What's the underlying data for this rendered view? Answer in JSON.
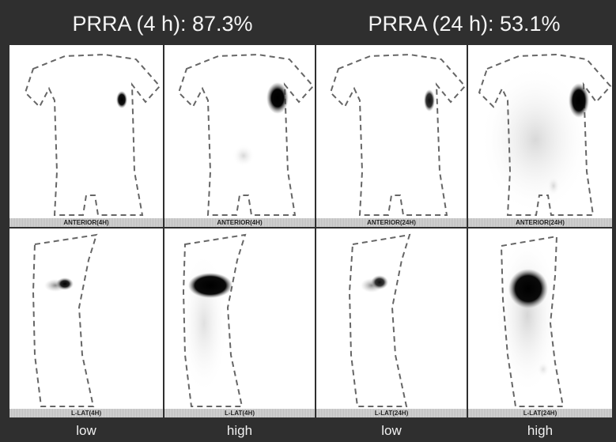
{
  "header": {
    "left_title": "PRRA (4 h): 87.3%",
    "right_title": "PRRA (24 h): 53.1%"
  },
  "panels": {
    "ant_4h_low": {
      "label": "ANTERIOR(4H)"
    },
    "ant_4h_high": {
      "label": "ANTERIOR(4H)"
    },
    "ant_24h_low": {
      "label": "ANTERIOR(24H)"
    },
    "ant_24h_high": {
      "label": "ANTERIOR(24H)"
    },
    "lat_4h_low": {
      "label": "L-LAT(4H)"
    },
    "lat_4h_high": {
      "label": "L-LAT(4H)"
    },
    "lat_24h_low": {
      "label": "L-LAT(24H)"
    },
    "lat_24h_high": {
      "label": "L-LAT(24H)"
    }
  },
  "footer": [
    "low",
    "high",
    "low",
    "high"
  ]
}
